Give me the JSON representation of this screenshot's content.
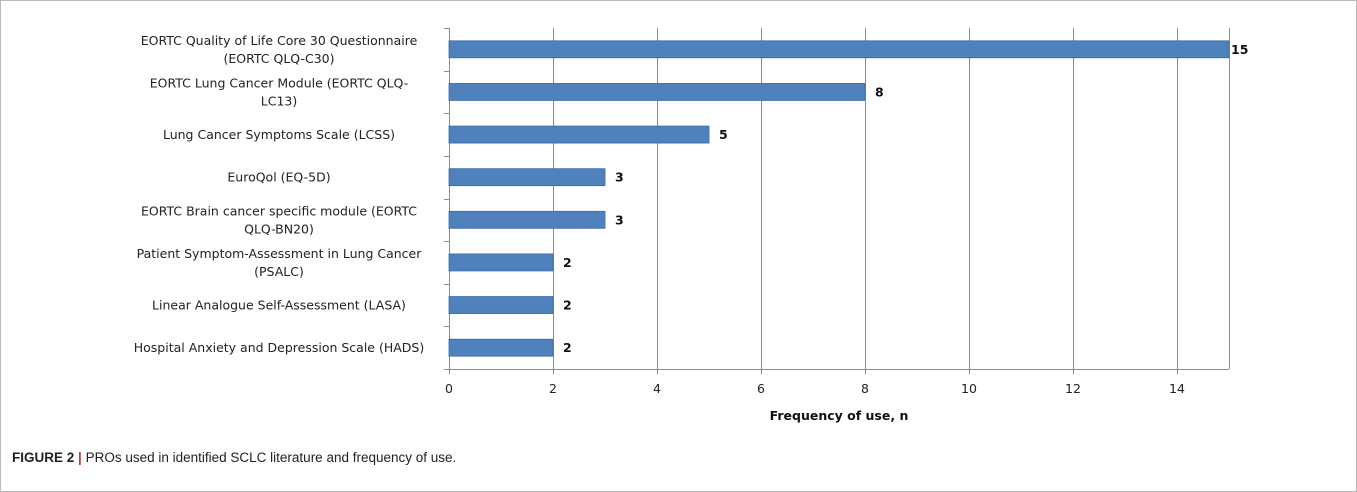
{
  "chart_data": {
    "type": "bar",
    "orientation": "horizontal",
    "categories": [
      [
        "EORTC Quality of Life Core 30 Questionnaire",
        "(EORTC QLQ-C30)"
      ],
      [
        "EORTC Lung Cancer Module (EORTC QLQ-",
        "LC13)"
      ],
      [
        "Lung Cancer Symptoms Scale (LCSS)"
      ],
      [
        "EuroQol (EQ-5D)"
      ],
      [
        "EORTC Brain cancer specific module (EORTC",
        "QLQ-BN20)"
      ],
      [
        "Patient Symptom-Assessment in Lung Cancer",
        "(PSALC)"
      ],
      [
        "Linear Analogue Self-Assessment (LASA)"
      ],
      [
        "Hospital Anxiety and Depression Scale (HADS)"
      ]
    ],
    "values": [
      15,
      8,
      5,
      3,
      3,
      2,
      2,
      2
    ],
    "data_labels": [
      "15",
      "8",
      "5",
      "3",
      "3",
      "2",
      "2",
      "2"
    ],
    "xlabel": "Frequency of use, n",
    "ylabel": "",
    "xlim": [
      0,
      15
    ],
    "xticks": [
      0,
      2,
      4,
      6,
      8,
      10,
      12,
      14
    ],
    "grid": "vertical",
    "bar_color": "#4f81bd",
    "bar_edge_color": "#3a6aa8",
    "grid_color": "#8c8c8c"
  },
  "caption": {
    "label": "FIGURE 2",
    "separator": "|",
    "text": "PROs used in identified SCLC literature and frequency of use."
  }
}
